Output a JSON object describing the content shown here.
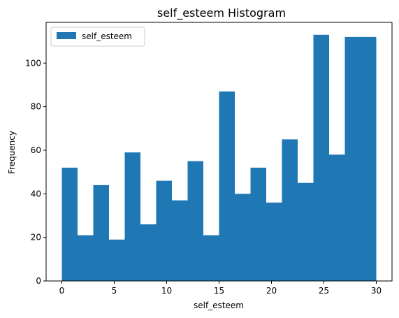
{
  "chart_data": {
    "type": "bar",
    "title": "self_esteem Histogram",
    "xlabel": "self_esteem",
    "ylabel": "Frequency",
    "xlim": [
      -1.5,
      31.5
    ],
    "ylim": [
      0,
      118.7
    ],
    "x_ticks": [
      0,
      5,
      10,
      15,
      20,
      25,
      30
    ],
    "y_ticks": [
      0,
      20,
      40,
      60,
      80,
      100
    ],
    "bin_edges": [
      0,
      1.5,
      3,
      4.5,
      6,
      7.5,
      9,
      10.5,
      12,
      13.5,
      15,
      16.5,
      18,
      19.5,
      21,
      22.5,
      24,
      25.5,
      27,
      28.5,
      30
    ],
    "series": [
      {
        "name": "self_esteem",
        "color": "#1f77b4",
        "values": [
          52,
          21,
          44,
          19,
          59,
          26,
          46,
          37,
          55,
          21,
          87,
          40,
          52,
          36,
          65,
          45,
          113,
          58,
          112,
          112
        ]
      }
    ],
    "legend": "top-left",
    "grid": false
  }
}
